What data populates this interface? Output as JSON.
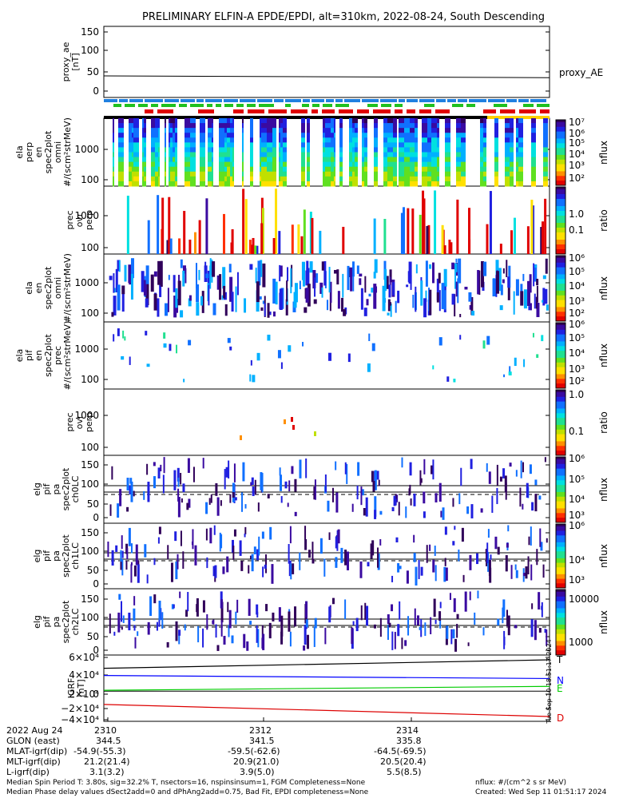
{
  "chart_data": {
    "type": "heatmap",
    "title": "PRELIMINARY ELFIN-A EPDE/EPDI, alt=310km, 2022-08-24, South Descending",
    "panels": [
      {
        "id": "proxy_ae",
        "ylabel": [
          "proxy_ae",
          "[nT]"
        ],
        "yticks": [
          "150",
          "100",
          "50",
          "0"
        ],
        "ylim": [
          -10,
          155
        ],
        "legend": "proxy_AE",
        "series_approx": [
          [
            0,
            40
          ],
          [
            0.5,
            38
          ],
          [
            1,
            36
          ]
        ]
      },
      {
        "id": "ela_perp_en",
        "ylabel": [
          "ela",
          "perp",
          "en",
          "spec2plot",
          "omni",
          "#/(scm²strMeV)"
        ],
        "yticks": [
          "1000",
          "100"
        ],
        "cbar_labels": [
          "10⁷",
          "10⁶",
          "10⁵",
          "10⁴",
          "10³",
          "10²"
        ],
        "cbar_title": "nflux"
      },
      {
        "id": "ela_prec_ovr_perp",
        "ylabel": [
          "prec",
          "ovr",
          "perp"
        ],
        "yticks": [
          "1000",
          "100"
        ],
        "cbar_labels": [
          "1.0",
          "0.1"
        ],
        "cbar_title": "ratio"
      },
      {
        "id": "ela_en_omni",
        "ylabel": [
          "ela",
          "en",
          "spec2plot",
          "omni",
          "#/(scm²strMeV)"
        ],
        "yticks": [
          "1000",
          "100"
        ],
        "cbar_labels": [
          "10⁶",
          "10⁵",
          "10⁴",
          "10³",
          "10²"
        ],
        "cbar_title": "nflux"
      },
      {
        "id": "ela_en_prec",
        "ylabel": [
          "ela",
          "pif",
          "en",
          "spec2plot",
          "prec",
          "#/(scm²strMeV)"
        ],
        "yticks": [
          "1000",
          "100"
        ],
        "cbar_labels": [
          "10⁶",
          "10⁵",
          "10⁴",
          "10³",
          "10²"
        ],
        "cbar_title": "nflux"
      },
      {
        "id": "ela_prec_ovr_perp_2",
        "ylabel": [
          "prec",
          "ovr",
          "perp"
        ],
        "yticks": [
          "1000",
          "100"
        ],
        "cbar_labels": [
          "1.0",
          "0.1"
        ],
        "cbar_title": "ratio"
      },
      {
        "id": "pa_ch0LC",
        "ylabel": [
          "elg",
          "pif",
          "pa",
          "spec2plot",
          "ch0LC"
        ],
        "yticks": [
          "150",
          "100",
          "50",
          "0"
        ],
        "cbar_labels": [
          "10⁶",
          "10⁵",
          "10⁴",
          "10³"
        ],
        "cbar_title": "nflux"
      },
      {
        "id": "pa_ch1LC",
        "ylabel": [
          "elg",
          "pif",
          "pa",
          "spec2plot",
          "ch1LC"
        ],
        "yticks": [
          "150",
          "100",
          "50",
          "0"
        ],
        "cbar_labels": [
          "10⁶",
          "10⁴",
          "10³"
        ],
        "cbar_title": "nflux"
      },
      {
        "id": "pa_ch2LC",
        "ylabel": [
          "elg",
          "pif",
          "pa",
          "spec2plot",
          "ch2LC"
        ],
        "yticks": [
          "150",
          "100",
          "50",
          "0"
        ],
        "cbar_labels": [
          "10000",
          "1000"
        ],
        "cbar_title": "nflux"
      },
      {
        "id": "igrf",
        "ylabel": [
          "IGRF",
          "[nT]"
        ],
        "yticks": [
          "6×10⁴",
          "4×10⁴",
          "2×10⁴",
          "0",
          "−2×10⁴",
          "−4×10⁴"
        ],
        "ylim": [
          -50000,
          60000
        ],
        "series": [
          {
            "name": "T",
            "color": "#000000",
            "values": [
              [
                0,
                38000
              ],
              [
                1,
                52000
              ]
            ]
          },
          {
            "name": "N",
            "color": "#0000ff",
            "values": [
              [
                0,
                26000
              ],
              [
                1,
                21000
              ]
            ]
          },
          {
            "name": "E",
            "color": "#00cc00",
            "values": [
              [
                0,
                1500
              ],
              [
                1,
                8000
              ]
            ]
          },
          {
            "name": "D",
            "color": "#dd0000",
            "values": [
              [
                0,
                -22000
              ],
              [
                1,
                -42000
              ]
            ]
          }
        ]
      }
    ],
    "xticks": [
      "2310",
      "2312",
      "2314"
    ]
  },
  "footer": {
    "row_labels": [
      "2022 Aug 24",
      "GLON (east)",
      "MLAT-igrf(dip)",
      "MLT-igrf(dip)",
      "L-igrf(dip)"
    ],
    "columns": [
      [
        "2310",
        "344.5",
        "-54.9(-55.3)",
        "21.2(21.4)",
        "3.1(3.2)"
      ],
      [
        "2312",
        "341.5",
        "-59.5(-62.6)",
        "20.9(21.0)",
        "3.9(5.0)"
      ],
      [
        "2314",
        "335.8",
        "-64.5(-69.5)",
        "20.5(20.4)",
        "5.5(8.5)"
      ]
    ],
    "note1": "Median Spin Period T: 3.80s, sig=32.2% T, nsectors=16, nspinsinsum=1, FGM Completeness=None",
    "note2": "Median Phase delay values dSect2add=0 and dPhAng2add=0.75, Bad Fit, EPDI completeness=None",
    "units": "nflux: #/(cm^2 s sr MeV)",
    "created": "Created: Wed Sep 11 01:51:17 2024",
    "sidebar_stamp": "Tue Sep 10 18:51:17 2024"
  },
  "colors": {
    "accent_red": "#dd0000",
    "accent_blue": "#0000ff",
    "accent_green": "#00cc00"
  }
}
